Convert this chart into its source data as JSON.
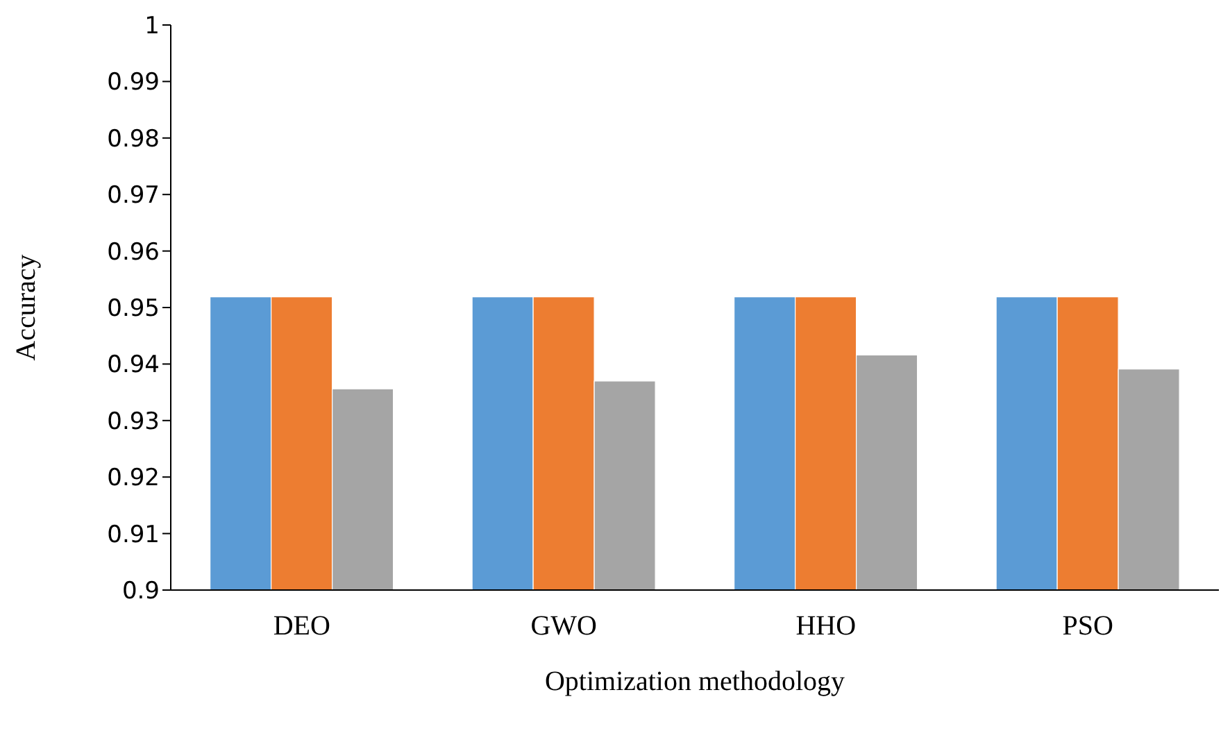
{
  "chart_data": {
    "type": "bar",
    "xlabel": "Optimization methodology",
    "ylabel": "Accuracy",
    "categories": [
      "DEO",
      "GWO",
      "HHO",
      "PSO"
    ],
    "series": [
      {
        "color": "#5b9bd5",
        "values": [
          0.9519,
          0.9519,
          0.9519,
          0.9519
        ]
      },
      {
        "color": "#ed7d31",
        "values": [
          0.9519,
          0.9519,
          0.9519,
          0.9519
        ]
      },
      {
        "color": "#a5a5a5",
        "values": [
          0.9356,
          0.937,
          0.9416,
          0.9391
        ]
      }
    ],
    "ylim": [
      0.9,
      1
    ],
    "yticks": [
      0.9,
      0.91,
      0.92,
      0.93,
      0.94,
      0.95,
      0.96,
      0.97,
      0.98,
      0.99,
      1
    ],
    "grid": false,
    "legend": false
  }
}
